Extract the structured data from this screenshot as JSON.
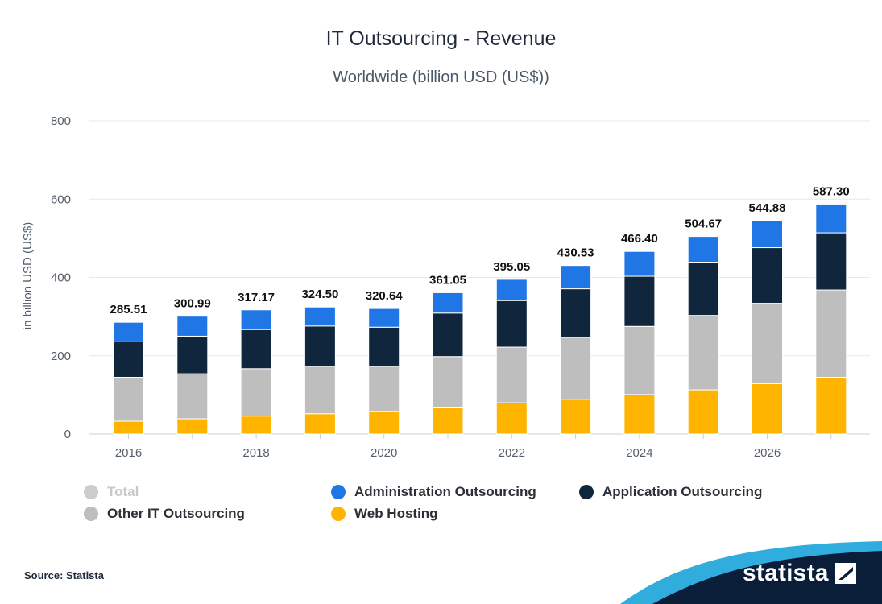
{
  "header": {
    "title": "IT Outsourcing - Revenue",
    "subtitle": "Worldwide (billion USD (US$))"
  },
  "chart_data": {
    "type": "bar",
    "stacked": true,
    "title": "IT Outsourcing - Revenue",
    "subtitle": "Worldwide (billion USD (US$))",
    "xlabel": "",
    "ylabel": "in billion USD (US$)",
    "ylim": [
      0,
      800
    ],
    "yticks": [
      "0",
      "200",
      "400",
      "600",
      "800"
    ],
    "categories": [
      "2016",
      "2017",
      "2018",
      "2019",
      "2020",
      "2021",
      "2022",
      "2023",
      "2024",
      "2025",
      "2026",
      "2027"
    ],
    "xtick_labels": [
      "2016",
      "",
      "2018",
      "",
      "2020",
      "",
      "2022",
      "",
      "2024",
      "",
      "2026",
      ""
    ],
    "series": [
      {
        "name": "Web Hosting",
        "color": "#ffb400",
        "values": [
          33,
          39,
          46,
          52,
          58,
          67,
          80,
          89,
          101,
          113,
          129,
          145
        ]
      },
      {
        "name": "Other IT Outsourcing",
        "color": "#bebebe",
        "values": [
          112,
          115,
          121,
          121,
          115,
          131,
          142,
          158,
          174,
          190,
          205,
          223
        ]
      },
      {
        "name": "Application Outsourcing",
        "color": "#10263d",
        "values": [
          92,
          96,
          100,
          103,
          100,
          111,
          119,
          124,
          128,
          136,
          142,
          146
        ]
      },
      {
        "name": "Administration Outsourcing",
        "color": "#2176e5",
        "values": [
          48.51,
          50.99,
          50.17,
          48.5,
          47.64,
          52.05,
          54.05,
          59.53,
          63.4,
          65.67,
          68.88,
          73.3
        ]
      }
    ],
    "totals": [
      "285.51",
      "300.99",
      "317.17",
      "324.50",
      "320.64",
      "361.05",
      "395.05",
      "430.53",
      "466.40",
      "504.67",
      "544.88",
      "587.30"
    ],
    "grid": true,
    "legend_position": "bottom-left"
  },
  "legend": {
    "items": [
      {
        "label": "Total",
        "color": "#cccccc",
        "muted": true
      },
      {
        "label": "Administration Outsourcing",
        "color": "#2176e5"
      },
      {
        "label": "Application Outsourcing",
        "color": "#10263d"
      },
      {
        "label": "Other IT Outsourcing",
        "color": "#bebebe"
      },
      {
        "label": "Web Hosting",
        "color": "#ffb400"
      }
    ]
  },
  "footer": {
    "source": "Source: Statista",
    "brand": "statista"
  }
}
